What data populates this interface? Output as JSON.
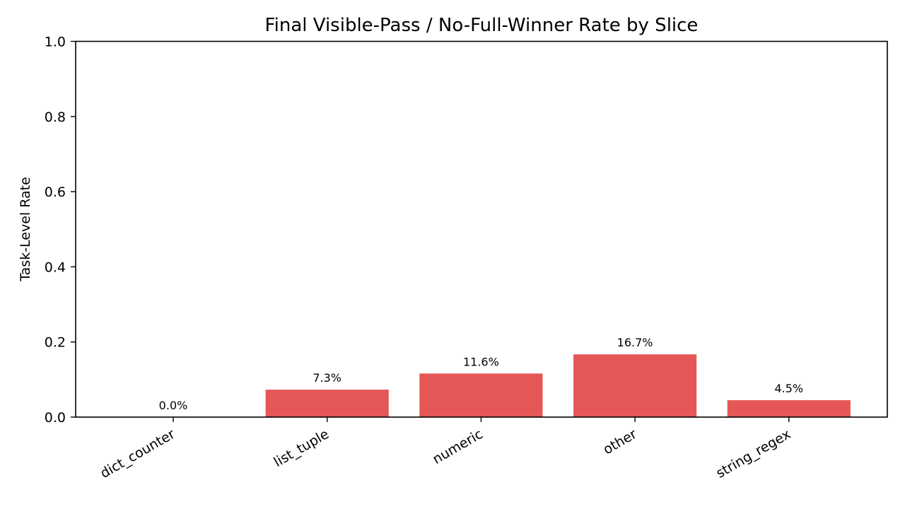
{
  "chart_data": {
    "type": "bar",
    "title": "Final Visible-Pass / No-Full-Winner Rate by Slice",
    "xlabel": "",
    "ylabel": "Task-Level Rate",
    "categories": [
      "dict_counter",
      "list_tuple",
      "numeric",
      "other",
      "string_regex"
    ],
    "values": [
      0.0,
      0.073,
      0.116,
      0.167,
      0.045
    ],
    "data_labels": [
      "0.0%",
      "7.3%",
      "11.6%",
      "16.7%",
      "4.5%"
    ],
    "ylim": [
      0,
      1.0
    ],
    "yticks": [
      0.0,
      0.2,
      0.4,
      0.6,
      0.8,
      1.0
    ],
    "ytick_labels": [
      "0.0",
      "0.2",
      "0.4",
      "0.6",
      "0.8",
      "1.0"
    ],
    "grid": false,
    "bar_color": "#e45756"
  }
}
